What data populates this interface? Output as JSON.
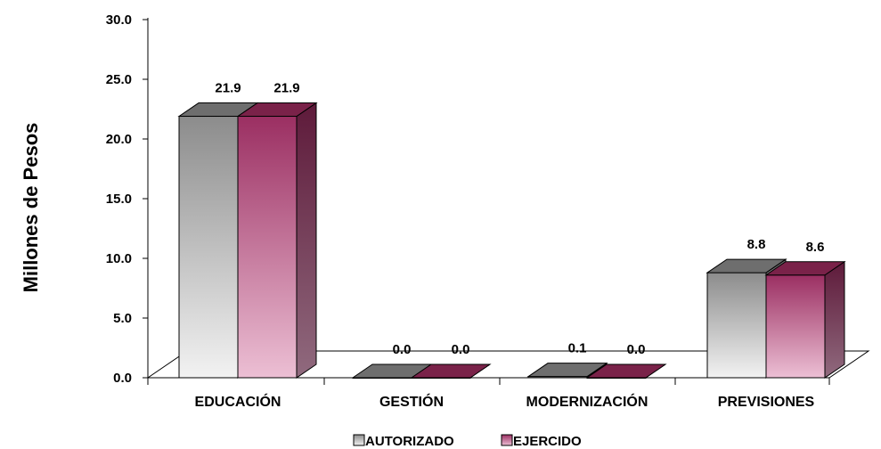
{
  "chart_data": {
    "type": "bar",
    "title": "",
    "ylabel": "Millones de Pesos",
    "xlabel": "",
    "ylim": [
      0,
      30
    ],
    "yticks": [
      "0.0",
      "5.0",
      "10.0",
      "15.0",
      "20.0",
      "25.0",
      "30.0"
    ],
    "categories": [
      "EDUCACIÓN",
      "GESTIÓN",
      "MODERNIZACIÓN",
      "PREVISIONES"
    ],
    "series": [
      {
        "name": "AUTORIZADO",
        "values": [
          21.9,
          0.0,
          0.1,
          8.8
        ],
        "labels": [
          "21.9",
          "0.0",
          "0.1",
          "8.8"
        ],
        "color": "#9a9a9a"
      },
      {
        "name": "EJERCIDO",
        "values": [
          21.9,
          0.0,
          0.0,
          8.6
        ],
        "labels": [
          "21.9",
          "0.0",
          "0.0",
          "8.6"
        ],
        "color": "#9b3060"
      }
    ],
    "legend_position": "bottom",
    "style": "3d-bar",
    "grid": false
  }
}
